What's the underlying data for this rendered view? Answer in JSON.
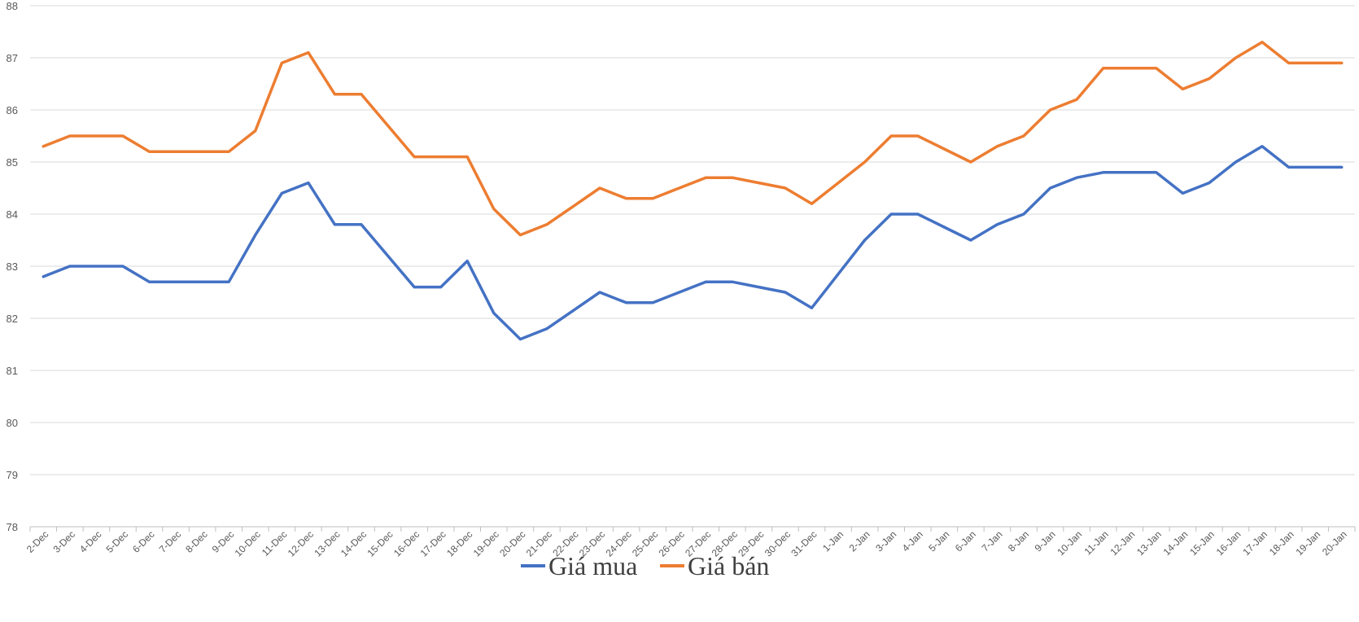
{
  "chart_data": {
    "type": "line",
    "title": "",
    "xlabel": "",
    "ylabel": "",
    "ylim": [
      78,
      88
    ],
    "yticks": [
      78,
      79,
      80,
      81,
      82,
      83,
      84,
      85,
      86,
      87,
      88
    ],
    "grid": true,
    "legend": "bottom",
    "categories": [
      "2-Dec",
      "3-Dec",
      "4-Dec",
      "5-Dec",
      "6-Dec",
      "7-Dec",
      "8-Dec",
      "9-Dec",
      "10-Dec",
      "11-Dec",
      "12-Dec",
      "13-Dec",
      "14-Dec",
      "15-Dec",
      "16-Dec",
      "17-Dec",
      "18-Dec",
      "19-Dec",
      "20-Dec",
      "21-Dec",
      "22-Dec",
      "23-Dec",
      "24-Dec",
      "25-Dec",
      "26-Dec",
      "27-Dec",
      "28-Dec",
      "29-Dec",
      "30-Dec",
      "31-Dec",
      "1-Jan",
      "2-Jan",
      "3-Jan",
      "4-Jan",
      "5-Jan",
      "6-Jan",
      "7-Jan",
      "8-Jan",
      "9-Jan",
      "10-Jan",
      "11-Jan",
      "12-Jan",
      "13-Jan",
      "14-Jan",
      "15-Jan",
      "16-Jan",
      "17-Jan",
      "18-Jan",
      "19-Jan",
      "20-Jan"
    ],
    "series": [
      {
        "name": "Giá mua",
        "color": "#4472C4",
        "values": [
          82.8,
          83.0,
          83.0,
          83.0,
          82.7,
          82.7,
          82.7,
          82.7,
          83.6,
          84.4,
          84.6,
          83.8,
          83.8,
          83.2,
          82.6,
          82.6,
          83.1,
          82.1,
          81.6,
          81.8,
          82.15,
          82.5,
          82.3,
          82.3,
          82.5,
          82.7,
          82.7,
          82.6,
          82.5,
          82.2,
          82.85,
          83.5,
          84.0,
          84.0,
          83.75,
          83.5,
          83.8,
          84.0,
          84.5,
          84.7,
          84.8,
          84.8,
          84.8,
          84.4,
          84.6,
          85.0,
          85.3,
          84.9,
          84.9,
          84.9
        ]
      },
      {
        "name": "Giá bán",
        "color": "#ED7D31",
        "values": [
          85.3,
          85.5,
          85.5,
          85.5,
          85.2,
          85.2,
          85.2,
          85.2,
          85.6,
          86.9,
          87.1,
          86.3,
          86.3,
          85.7,
          85.1,
          85.1,
          85.1,
          84.1,
          83.6,
          83.8,
          84.15,
          84.5,
          84.3,
          84.3,
          84.5,
          84.7,
          84.7,
          84.6,
          84.5,
          84.2,
          84.6,
          85.0,
          85.5,
          85.5,
          85.25,
          85.0,
          85.3,
          85.5,
          86.0,
          86.2,
          86.8,
          86.8,
          86.8,
          86.4,
          86.6,
          87.0,
          87.3,
          86.9,
          86.9,
          86.9
        ]
      }
    ]
  }
}
